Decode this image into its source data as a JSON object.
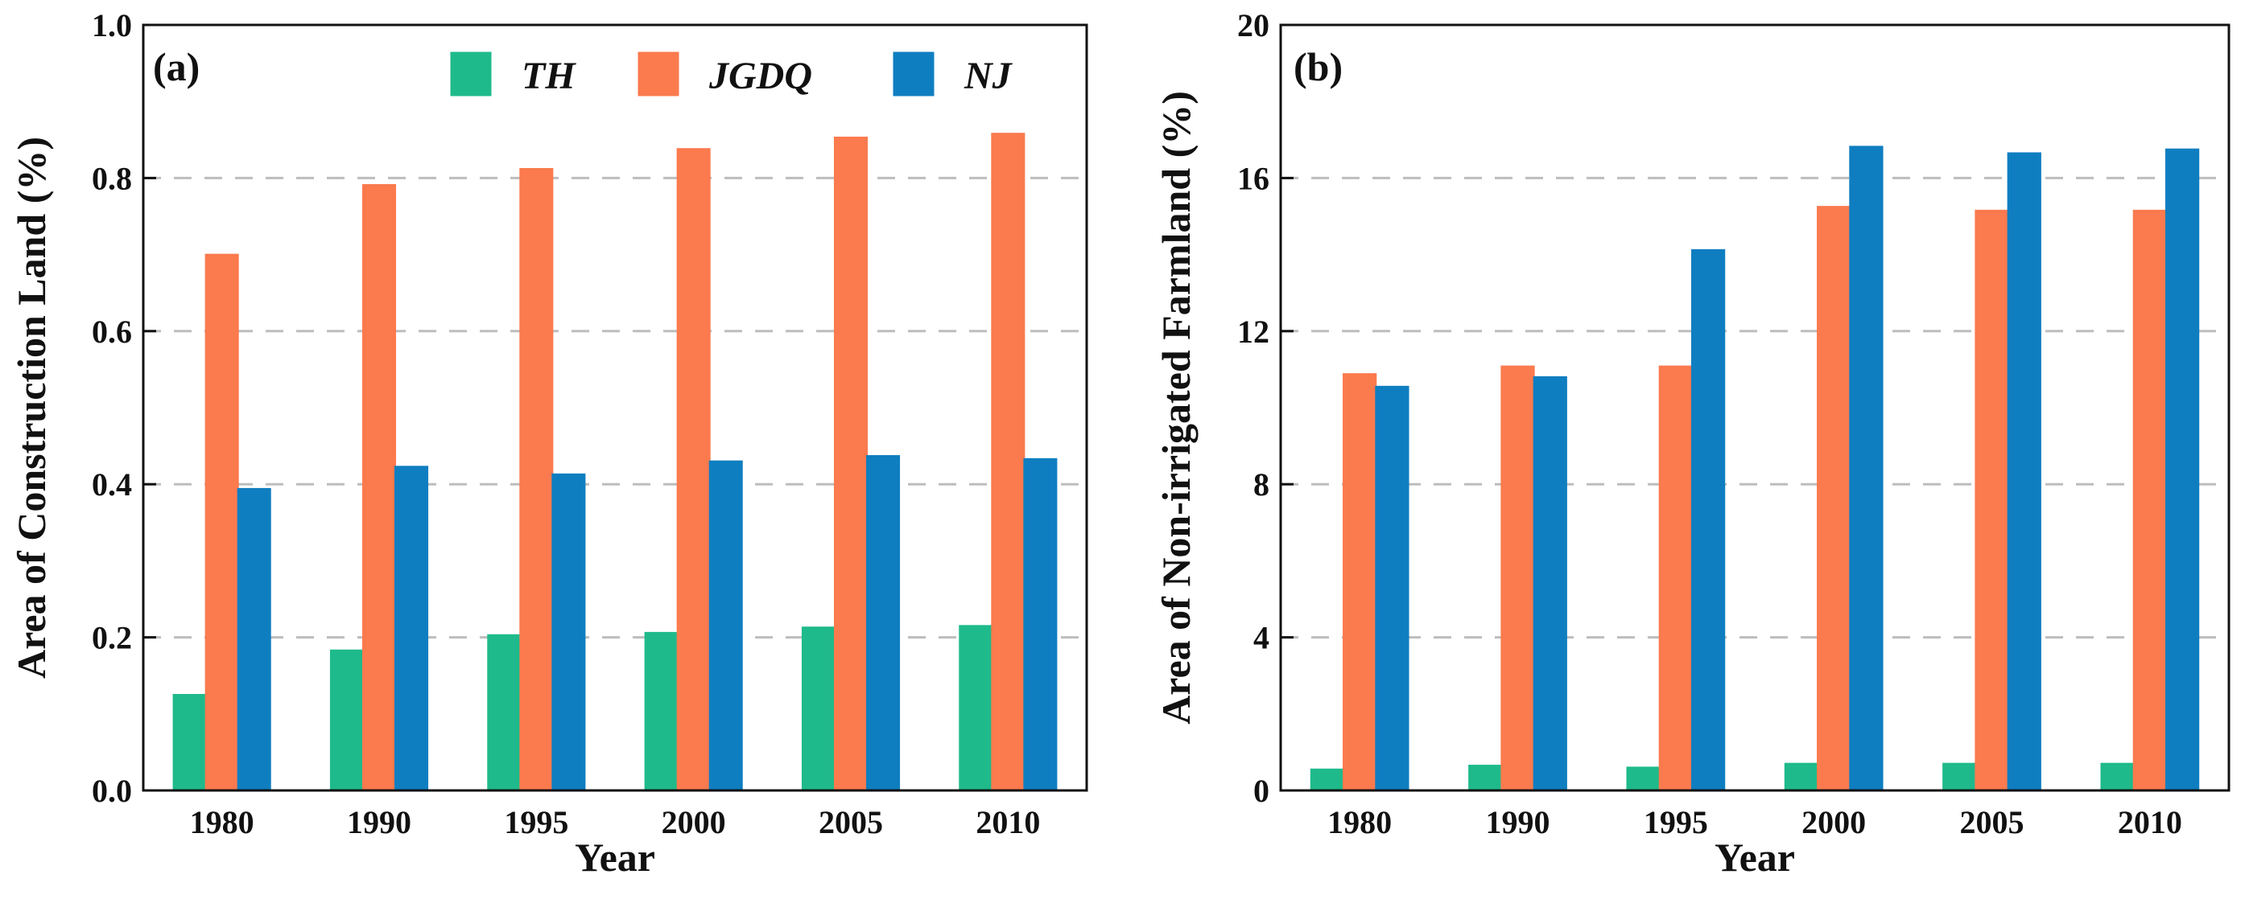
{
  "chart_data": [
    {
      "type": "bar",
      "panel_label": "(a)",
      "categories": [
        "1980",
        "1990",
        "1995",
        "2000",
        "2005",
        "2010"
      ],
      "xlabel": "Year",
      "ylabel": "Area of Construction Land (%)",
      "ylim": [
        0,
        1.0
      ],
      "yticks": [
        "0.0",
        "0.2",
        "0.4",
        "0.6",
        "0.8",
        "1.0"
      ],
      "grid": "horizontal dashed",
      "legend": "top",
      "series": [
        {
          "name": "TH",
          "color": "#1fba8b",
          "values": [
            0.125,
            0.183,
            0.203,
            0.206,
            0.213,
            0.215
          ]
        },
        {
          "name": "JGDQ",
          "color": "#fb7a4e",
          "values": [
            0.7,
            0.791,
            0.812,
            0.838,
            0.853,
            0.858
          ]
        },
        {
          "name": "NJ",
          "color": "#0f7ec0",
          "values": [
            0.394,
            0.423,
            0.413,
            0.43,
            0.437,
            0.433
          ]
        }
      ]
    },
    {
      "type": "bar",
      "panel_label": "(b)",
      "categories": [
        "1980",
        "1990",
        "1995",
        "2000",
        "2005",
        "2010"
      ],
      "xlabel": "Year",
      "ylabel": "Area of Non-irrigated Farmland (%)",
      "ylim": [
        0,
        20
      ],
      "yticks": [
        "0",
        "4",
        "8",
        "12",
        "16",
        "20"
      ],
      "grid": "horizontal dashed",
      "series": [
        {
          "name": "TH",
          "color": "#1fba8b",
          "values": [
            0.55,
            0.65,
            0.6,
            0.7,
            0.7,
            0.7
          ]
        },
        {
          "name": "JGDQ",
          "color": "#fb7a4e",
          "values": [
            10.88,
            11.08,
            11.08,
            15.25,
            15.15,
            15.15
          ]
        },
        {
          "name": "NJ",
          "color": "#0f7ec0",
          "values": [
            10.55,
            10.8,
            14.12,
            16.82,
            16.65,
            16.75
          ]
        }
      ]
    }
  ]
}
